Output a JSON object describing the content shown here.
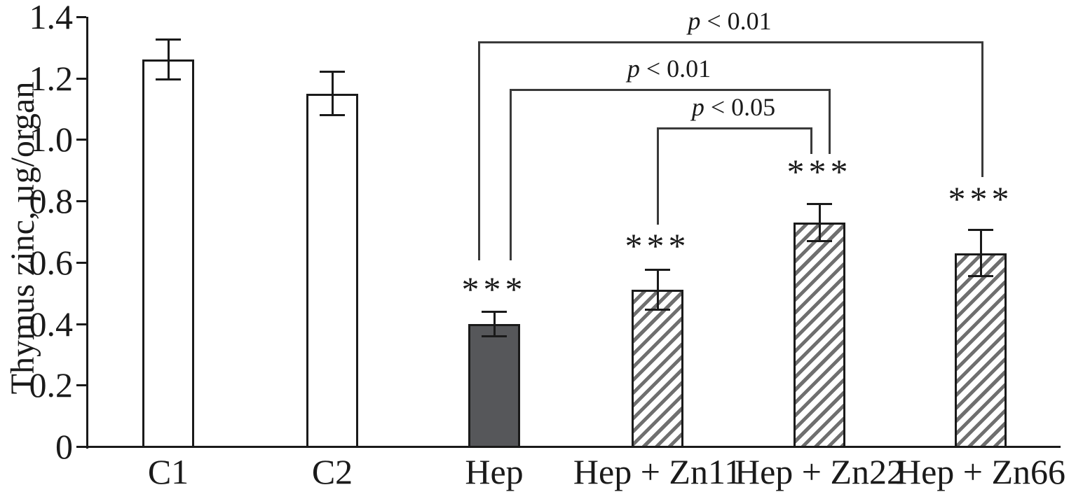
{
  "chart_data": {
    "type": "bar",
    "title": "",
    "xlabel": "",
    "ylabel": "Thymus zinc, µg/organ",
    "ylim": [
      0,
      1.4
    ],
    "ytick_labels": [
      "0",
      "0.2",
      "0.4",
      "0.6",
      "0.8",
      "1.0",
      "1.2",
      "1.4"
    ],
    "grid": false,
    "legend_position": "none",
    "categories": [
      "C1",
      "C2",
      "Hep",
      "Hep + Zn11",
      "Hep + Zn22",
      "Hep + Zn66"
    ],
    "values": [
      1.26,
      1.15,
      0.4,
      0.51,
      0.73,
      0.63
    ],
    "errors": [
      0.065,
      0.07,
      0.04,
      0.065,
      0.06,
      0.075
    ],
    "bar_styles": [
      "open",
      "open",
      "solid",
      "hatched",
      "hatched",
      "hatched"
    ],
    "significance": [
      "",
      "",
      "***",
      "***",
      "***",
      "***"
    ],
    "annotations": [
      {
        "label": "p < 0.01",
        "from": "Hep",
        "to": "Hep + Zn66"
      },
      {
        "label": "p < 0.01",
        "from": "Hep",
        "to": "Hep + Zn22"
      },
      {
        "label": "p < 0.05",
        "from": "Hep + Zn11",
        "to": "Hep + Zn22"
      }
    ],
    "colors": {
      "solid_bar_fill": "#56575a",
      "hatch_stripe": "#6f6f6f",
      "axis_line": "#1a1a1a",
      "bracket_line": "#3a3a3a",
      "background": "#ffffff"
    }
  }
}
